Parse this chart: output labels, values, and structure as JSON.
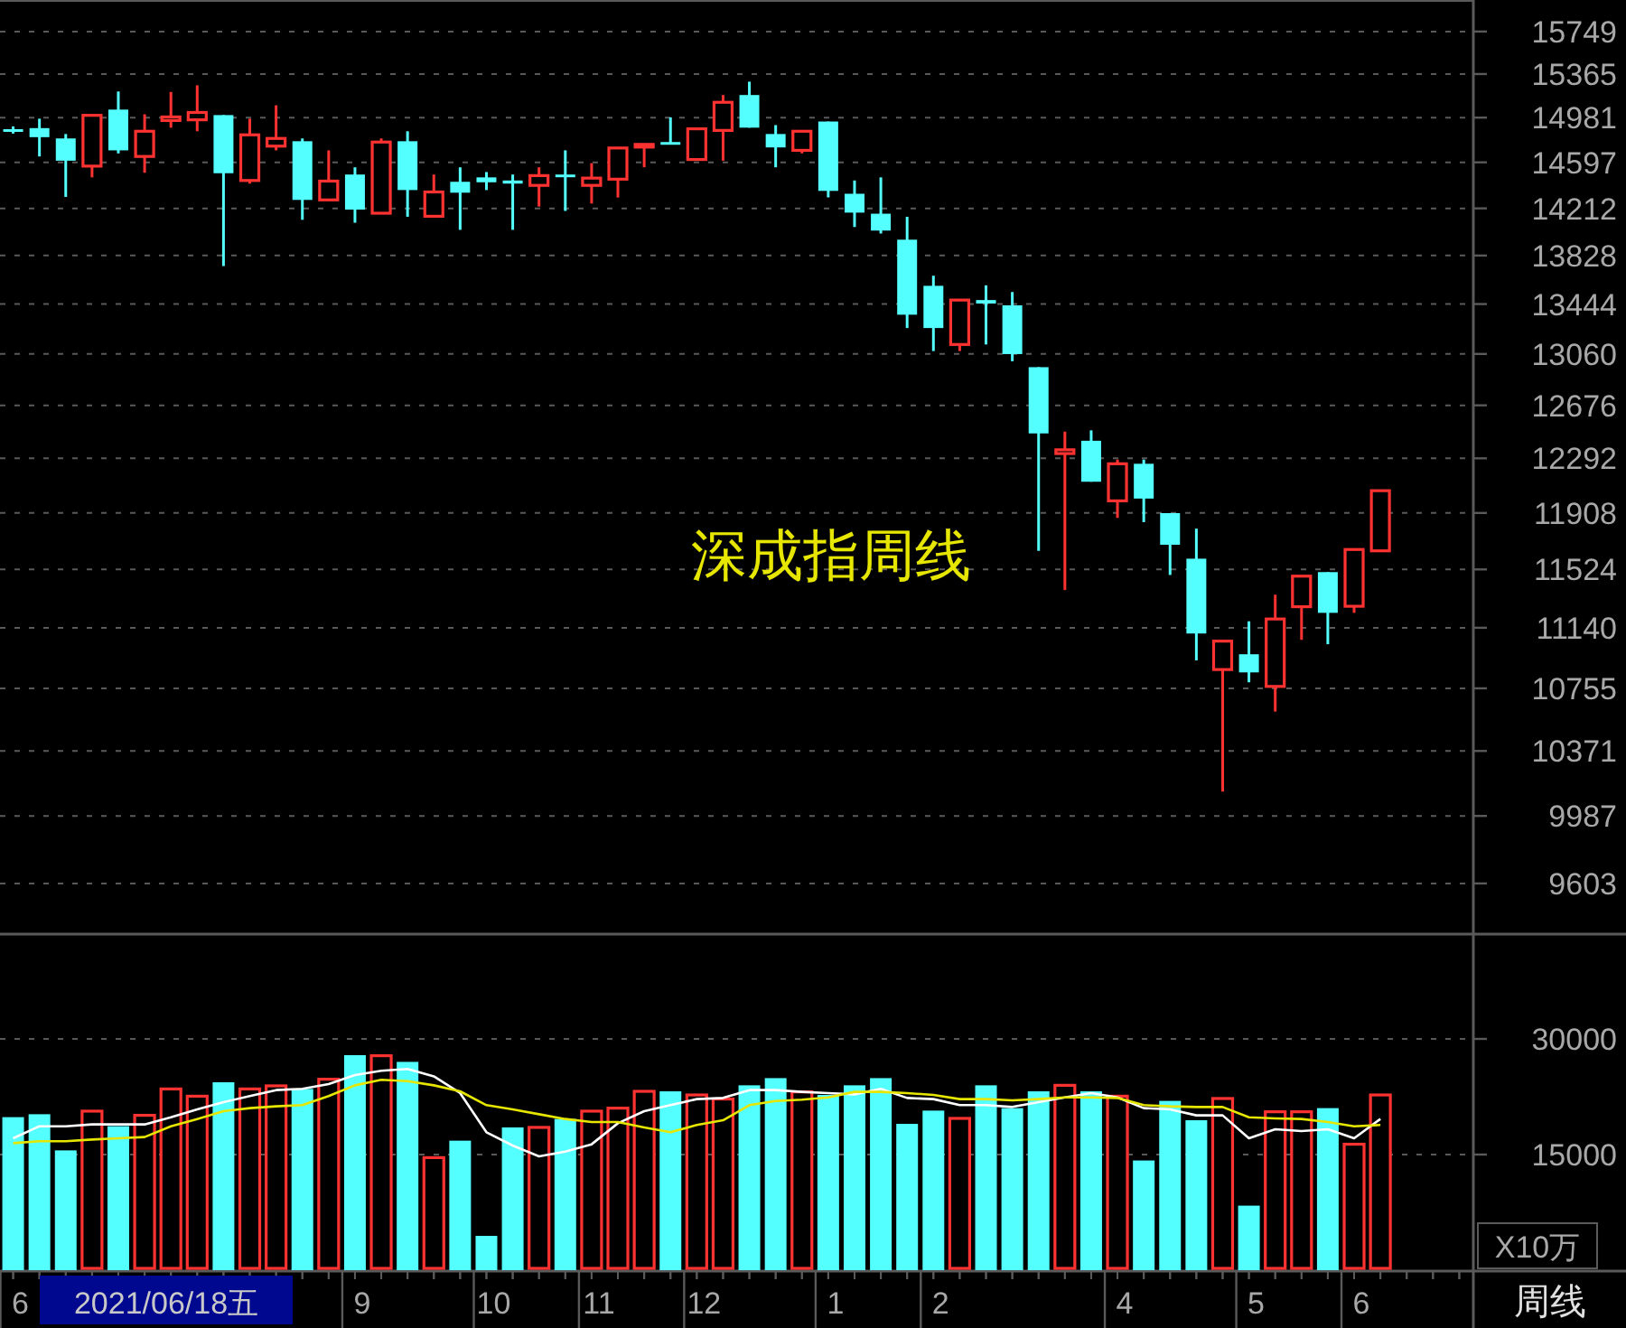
{
  "chart_data": [
    {
      "type": "candlestick",
      "log": "y",
      "grid": "y",
      "tick_labels": "y",
      "categories": [
        null,
        null,
        null,
        null,
        null,
        null,
        null,
        null,
        null,
        null,
        null,
        null,
        null,
        null,
        null,
        null,
        null,
        null,
        null,
        null,
        null,
        null,
        null,
        null,
        null,
        null,
        null,
        null,
        null,
        null,
        null,
        null,
        null,
        null,
        null,
        null,
        null,
        null,
        null,
        null,
        null,
        null,
        null,
        null,
        null,
        null,
        null,
        null,
        null,
        null,
        null,
        null,
        null,
        null,
        null,
        null
      ],
      "ohlc": [
        [
          14881,
          14905,
          14843,
          14866
        ],
        [
          14890,
          14972,
          14647,
          14812
        ],
        [
          14801,
          14839,
          14307,
          14611
        ],
        [
          14565,
          15001,
          14470,
          15001
        ],
        [
          15051,
          15210,
          14673,
          14699
        ],
        [
          14647,
          15010,
          14509,
          14863
        ],
        [
          14956,
          15206,
          14894,
          14987
        ],
        [
          14962,
          15265,
          14863,
          15026
        ],
        [
          15003,
          15003,
          13744,
          14505
        ],
        [
          14444,
          14972,
          14418,
          14832
        ],
        [
          14735,
          15089,
          14699,
          14801
        ],
        [
          14777,
          14801,
          14118,
          14282
        ],
        [
          14282,
          14699,
          14282,
          14439
        ],
        [
          14494,
          14555,
          14094,
          14202
        ],
        [
          14172,
          14801,
          14172,
          14770
        ],
        [
          14777,
          14863,
          14143,
          14364
        ],
        [
          14147,
          14494,
          14147,
          14348
        ],
        [
          14433,
          14555,
          14036,
          14342
        ],
        [
          14470,
          14515,
          14364,
          14429
        ],
        [
          14444,
          14494,
          14036,
          14418
        ],
        [
          14403,
          14555,
          14227,
          14485
        ],
        [
          14494,
          14699,
          14191,
          14474
        ],
        [
          14403,
          14590,
          14252,
          14464
        ],
        [
          14455,
          14719,
          14302,
          14719
        ],
        [
          14735,
          14750,
          14555,
          14750
        ],
        [
          14770,
          14983,
          14750,
          14750
        ],
        [
          14621,
          14884,
          14621,
          14884
        ],
        [
          14870,
          15179,
          14611,
          15115
        ],
        [
          15179,
          15297,
          14894,
          14894
        ],
        [
          14839,
          14916,
          14555,
          14724
        ],
        [
          14699,
          14863,
          14673,
          14863
        ],
        [
          14947,
          14947,
          14303,
          14357
        ],
        [
          14333,
          14444,
          14059,
          14177
        ],
        [
          14168,
          14470,
          14006,
          14030
        ],
        [
          13956,
          14143,
          13258,
          13361
        ],
        [
          13587,
          13667,
          13082,
          13258
        ],
        [
          13132,
          13475,
          13082,
          13475
        ],
        [
          13475,
          13591,
          13132,
          13448
        ],
        [
          13434,
          13538,
          13005,
          13059
        ],
        [
          12960,
          12960,
          11649,
          12471
        ],
        [
          12326,
          12484,
          11387,
          12353
        ],
        [
          12418,
          12493,
          12126,
          12126
        ],
        [
          11992,
          12283,
          11874,
          12253
        ],
        [
          12253,
          12283,
          11845,
          12008
        ],
        [
          11907,
          11907,
          11487,
          11690
        ],
        [
          11596,
          11800,
          10931,
          11103
        ],
        [
          10873,
          11054,
          10129,
          11054
        ],
        [
          10970,
          11182,
          10793,
          10855
        ],
        [
          10767,
          11356,
          10611,
          11197
        ],
        [
          11277,
          11479,
          11062,
          11479
        ],
        [
          11506,
          11506,
          11034,
          11237
        ],
        [
          11280,
          11658,
          11237,
          11658
        ],
        [
          11649,
          12063,
          11649,
          12063
        ],
        null,
        null,
        null
      ],
      "colors": [
        "#54ffff",
        "#54ffff",
        "#54ffff",
        "#ff3232",
        "#54ffff",
        "#ff3232",
        "#ff3232",
        "#ff3232",
        "#54ffff",
        "#ff3232",
        "#ff3232",
        "#54ffff",
        "#ff3232",
        "#54ffff",
        "#ff3232",
        "#54ffff",
        "#ff3232",
        "#54ffff",
        "#54ffff",
        "#54ffff",
        "#ff3232",
        "#54ffff",
        "#ff3232",
        "#ff3232",
        "#ff3232",
        "#54ffff",
        "#ff3232",
        "#ff3232",
        "#54ffff",
        "#54ffff",
        "#ff3232",
        "#54ffff",
        "#54ffff",
        "#54ffff",
        "#54ffff",
        "#54ffff",
        "#ff3232",
        "#54ffff",
        "#54ffff",
        "#54ffff",
        "#ff3232",
        "#54ffff",
        "#ff3232",
        "#54ffff",
        "#54ffff",
        "#54ffff",
        "#ff3232",
        "#54ffff",
        "#ff3232",
        "#ff3232",
        "#54ffff",
        "#ff3232",
        "#ff3232",
        null,
        null,
        null
      ],
      "ylim": [
        9350,
        16040
      ],
      "yticks": [
        9603,
        9987,
        10371,
        10755,
        11140,
        11524,
        11908,
        12292,
        12676,
        13060,
        13444,
        13828,
        14212,
        14597,
        14981,
        15365,
        15749
      ],
      "annotations": [
        "深成指周线"
      ]
    },
    {
      "type": "bar",
      "grid": "y",
      "ylabel": "X10万",
      "categories": [
        "6",
        null,
        null,
        null,
        null,
        null,
        null,
        null,
        null,
        null,
        null,
        null,
        null,
        "9",
        null,
        null,
        null,
        null,
        "10",
        null,
        null,
        null,
        "11",
        null,
        null,
        null,
        "12",
        null,
        null,
        null,
        null,
        "1",
        null,
        null,
        null,
        "2",
        null,
        null,
        null,
        null,
        null,
        null,
        "4",
        null,
        null,
        null,
        null,
        "5",
        null,
        null,
        null,
        "6",
        null,
        null,
        null,
        null
      ],
      "series": [
        {
          "colors": [
            "#54ffff",
            "#54ffff",
            "#54ffff",
            "#ff3232",
            "#54ffff",
            "#ff3232",
            "#ff3232",
            "#ff3232",
            "#54ffff",
            "#ff3232",
            "#ff3232",
            "#54ffff",
            "#ff3232",
            "#54ffff",
            "#ff3232",
            "#54ffff",
            "#ff3232",
            "#54ffff",
            "#54ffff",
            "#54ffff",
            "#ff3232",
            "#54ffff",
            "#ff3232",
            "#ff3232",
            "#ff3232",
            "#54ffff",
            "#ff3232",
            "#ff3232",
            "#54ffff",
            "#54ffff",
            "#ff3232",
            "#54ffff",
            "#54ffff",
            "#54ffff",
            "#54ffff",
            "#54ffff",
            "#ff3232",
            "#54ffff",
            "#54ffff",
            "#54ffff",
            "#ff3232",
            "#54ffff",
            "#ff3232",
            "#54ffff",
            "#54ffff",
            "#54ffff",
            "#ff3232",
            "#54ffff",
            "#ff3232",
            "#ff3232",
            "#54ffff",
            "#ff3232",
            "#ff3232",
            null,
            null,
            null
          ],
          "values": [
            19850,
            20230,
            15540,
            20630,
            18680,
            20090,
            23510,
            22570,
            24380,
            23510,
            23910,
            23510,
            24770,
            27890,
            27820,
            27020,
            14600,
            16800,
            4450,
            18520,
            18520,
            19620,
            20630,
            21020,
            23200,
            23200,
            22730,
            22200,
            23980,
            24910,
            23130,
            22730,
            23980,
            24910,
            18980,
            20700,
            19690,
            23980,
            21020,
            23200,
            23980,
            23200,
            22570,
            14230,
            21960,
            19450,
            22270,
            8370,
            20550,
            20550,
            21020,
            16340,
            22730,
            null,
            null,
            null
          ]
        },
        {
          "type": "line",
          "color": "#ffffff",
          "values": [
            17110,
            18670,
            18670,
            18910,
            18910,
            18910,
            19840,
            20860,
            21800,
            22580,
            23360,
            23520,
            24140,
            25310,
            25860,
            26100,
            25150,
            22970,
            17890,
            16170,
            14770,
            15390,
            16330,
            19060,
            20630,
            21410,
            22190,
            22340,
            23360,
            23360,
            23130,
            22970,
            22810,
            23520,
            22340,
            22190,
            21410,
            21410,
            21170,
            21800,
            22420,
            22970,
            22420,
            21020,
            20860,
            20080,
            20080,
            17110,
            18280,
            18050,
            18280,
            17110,
            19610,
            null,
            null,
            null
          ]
        },
        {
          "type": "line",
          "color": "#e6e600",
          "values": [
            16480,
            16720,
            16720,
            16950,
            17110,
            17270,
            18670,
            19610,
            20630,
            21020,
            21250,
            21410,
            22580,
            23980,
            24690,
            24530,
            23980,
            23200,
            21410,
            20860,
            20230,
            19610,
            19220,
            19220,
            18520,
            17890,
            18830,
            19450,
            21410,
            21950,
            22110,
            22420,
            23130,
            23130,
            22970,
            22730,
            22190,
            22190,
            22030,
            22190,
            22420,
            22420,
            22340,
            21410,
            21250,
            21170,
            21170,
            19840,
            19690,
            19610,
            19220,
            18670,
            18830,
            null,
            null,
            null
          ]
        }
      ],
      "ylim": [
        0,
        43600
      ],
      "yticks": [
        15000,
        30000
      ],
      "annotations": [
        "2021/06/18五",
        "周线"
      ]
    }
  ]
}
